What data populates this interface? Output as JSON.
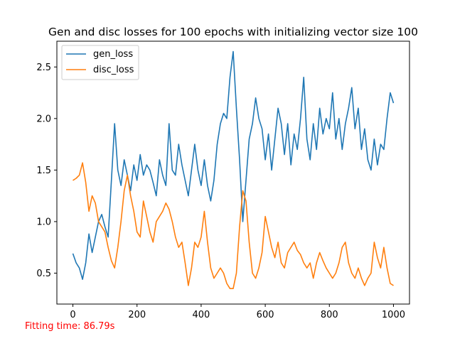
{
  "chart_data": {
    "type": "line",
    "title": "Gen and disc losses for 100 epochs with initializing vector size 100",
    "xlabel": "",
    "ylabel": "",
    "xlim": [
      -50,
      1050
    ],
    "ylim": [
      0.2,
      2.75
    ],
    "xticks": [
      0,
      200,
      400,
      600,
      800,
      1000
    ],
    "yticks": [
      0.5,
      1.0,
      1.5,
      2.0,
      2.5
    ],
    "xtick_labels": [
      "0",
      "200",
      "400",
      "600",
      "800",
      "1000"
    ],
    "ytick_labels": [
      "0.5",
      "1.0",
      "1.5",
      "2.0",
      "2.5"
    ],
    "grid": false,
    "legend_position": "top-left",
    "series": [
      {
        "name": "gen_loss",
        "color": "#1f77b4",
        "x": [
          0,
          10,
          20,
          30,
          40,
          50,
          60,
          70,
          80,
          90,
          100,
          110,
          120,
          130,
          140,
          150,
          160,
          170,
          180,
          190,
          200,
          210,
          220,
          230,
          240,
          250,
          260,
          270,
          280,
          290,
          300,
          310,
          320,
          330,
          340,
          350,
          360,
          370,
          380,
          390,
          400,
          410,
          420,
          430,
          440,
          450,
          460,
          470,
          480,
          490,
          500,
          510,
          520,
          530,
          540,
          550,
          560,
          570,
          580,
          590,
          600,
          610,
          620,
          630,
          640,
          650,
          660,
          670,
          680,
          690,
          700,
          710,
          720,
          730,
          740,
          750,
          760,
          770,
          780,
          790,
          800,
          810,
          820,
          830,
          840,
          850,
          860,
          870,
          880,
          890,
          900,
          910,
          920,
          930,
          940,
          950,
          960,
          970,
          980,
          990,
          1000
        ],
        "y": [
          0.69,
          0.6,
          0.55,
          0.44,
          0.6,
          0.88,
          0.7,
          0.85,
          1.0,
          1.07,
          0.95,
          0.85,
          1.4,
          1.95,
          1.5,
          1.35,
          1.6,
          1.45,
          1.3,
          1.55,
          1.4,
          1.65,
          1.45,
          1.55,
          1.5,
          1.38,
          1.25,
          1.6,
          1.45,
          1.35,
          1.95,
          1.5,
          1.45,
          1.75,
          1.55,
          1.4,
          1.25,
          1.5,
          1.75,
          1.5,
          1.35,
          1.6,
          1.35,
          1.2,
          1.4,
          1.75,
          1.95,
          2.05,
          2.0,
          2.4,
          2.65,
          2.1,
          1.6,
          1.0,
          1.4,
          1.8,
          1.95,
          2.2,
          2.0,
          1.9,
          1.6,
          1.85,
          1.5,
          1.8,
          2.1,
          1.95,
          1.65,
          1.95,
          1.55,
          1.85,
          1.7,
          2.0,
          2.4,
          1.8,
          1.6,
          1.95,
          1.7,
          2.1,
          1.85,
          2.0,
          1.9,
          2.25,
          1.8,
          2.0,
          1.7,
          1.95,
          2.1,
          2.3,
          1.9,
          2.1,
          1.7,
          1.9,
          1.6,
          1.5,
          1.8,
          1.55,
          1.75,
          1.7,
          2.0,
          2.25,
          2.15
        ]
      },
      {
        "name": "disc_loss",
        "color": "#ff7f0e",
        "x": [
          0,
          10,
          20,
          30,
          40,
          50,
          60,
          70,
          80,
          90,
          100,
          110,
          120,
          130,
          140,
          150,
          160,
          170,
          180,
          190,
          200,
          210,
          220,
          230,
          240,
          250,
          260,
          270,
          280,
          290,
          300,
          310,
          320,
          330,
          340,
          350,
          360,
          370,
          380,
          390,
          400,
          410,
          420,
          430,
          440,
          450,
          460,
          470,
          480,
          490,
          500,
          510,
          520,
          530,
          540,
          550,
          560,
          570,
          580,
          590,
          600,
          610,
          620,
          630,
          640,
          650,
          660,
          670,
          680,
          690,
          700,
          710,
          720,
          730,
          740,
          750,
          760,
          770,
          780,
          790,
          800,
          810,
          820,
          830,
          840,
          850,
          860,
          870,
          880,
          890,
          900,
          910,
          920,
          930,
          940,
          950,
          960,
          970,
          980,
          990,
          1000
        ],
        "y": [
          1.4,
          1.42,
          1.45,
          1.57,
          1.38,
          1.1,
          1.25,
          1.18,
          1.0,
          0.95,
          0.9,
          0.75,
          0.62,
          0.55,
          0.75,
          1.0,
          1.3,
          1.45,
          1.25,
          1.1,
          0.9,
          0.85,
          1.2,
          1.05,
          0.9,
          0.8,
          1.0,
          1.05,
          1.1,
          1.18,
          1.12,
          1.0,
          0.85,
          0.75,
          0.8,
          0.6,
          0.38,
          0.55,
          0.8,
          0.75,
          0.85,
          1.1,
          0.8,
          0.55,
          0.45,
          0.5,
          0.55,
          0.5,
          0.4,
          0.35,
          0.35,
          0.5,
          0.95,
          1.3,
          1.2,
          0.8,
          0.5,
          0.45,
          0.55,
          0.7,
          1.05,
          0.9,
          0.75,
          0.65,
          0.8,
          0.6,
          0.55,
          0.7,
          0.75,
          0.8,
          0.72,
          0.68,
          0.6,
          0.55,
          0.6,
          0.45,
          0.6,
          0.7,
          0.62,
          0.55,
          0.5,
          0.45,
          0.5,
          0.6,
          0.75,
          0.8,
          0.6,
          0.5,
          0.45,
          0.55,
          0.45,
          0.38,
          0.45,
          0.5,
          0.8,
          0.65,
          0.55,
          0.75,
          0.55,
          0.4,
          0.38
        ]
      }
    ]
  },
  "annotation": {
    "fitting_time_text": "Fitting time: 86.79s",
    "fitting_time_color": "#ff0000"
  }
}
